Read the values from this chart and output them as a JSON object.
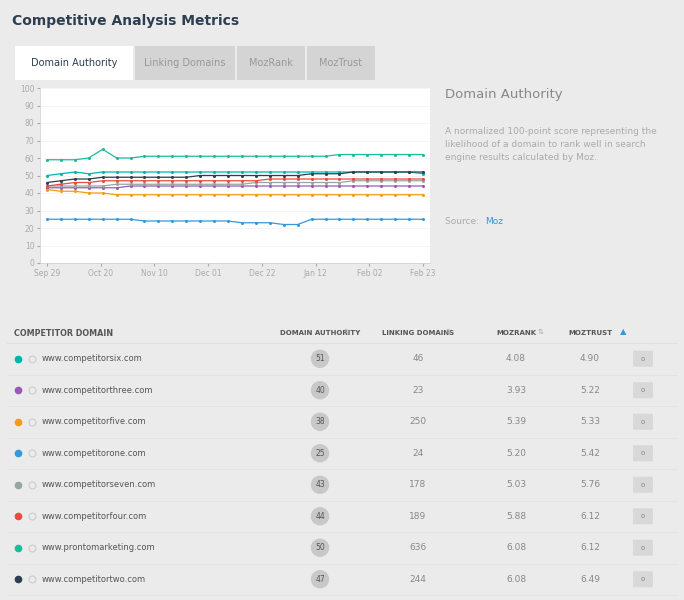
{
  "title": "Competitive Analysis Metrics",
  "tab_labels": [
    "Domain Authority",
    "Linking Domains",
    "MozRank",
    "MozTrust"
  ],
  "chart_title": "Domain Authority",
  "chart_desc": "A normalized 100-point score representing the\nlikelihood of a domain to rank well in search\nengine results calculated by Moz.",
  "x_labels": [
    "Sep 29",
    "Oct 20",
    "Nov 10",
    "Dec 01",
    "Dec 22",
    "Jan 12",
    "Feb 02",
    "Feb 23"
  ],
  "ylim": [
    0,
    100
  ],
  "yticks": [
    0,
    10,
    20,
    30,
    40,
    50,
    60,
    70,
    80,
    90,
    100
  ],
  "lines": [
    {
      "label": "www.competitorsix.com",
      "color": "#00b5ad",
      "values": [
        50,
        51,
        52,
        51,
        52,
        52,
        52,
        52,
        52,
        52,
        52,
        52,
        52,
        52,
        52,
        52,
        52,
        52,
        52,
        52,
        52,
        52,
        52,
        52,
        52,
        52,
        52,
        51
      ]
    },
    {
      "label": "www.competitorthree.com",
      "color": "#9b59b6",
      "values": [
        43,
        43,
        43,
        43,
        43,
        43,
        44,
        44,
        44,
        44,
        44,
        44,
        44,
        44,
        44,
        44,
        44,
        44,
        44,
        44,
        44,
        44,
        44,
        44,
        44,
        44,
        44,
        44
      ]
    },
    {
      "label": "www.competitorfive.com",
      "color": "#f39c12",
      "values": [
        42,
        41,
        41,
        40,
        40,
        39,
        39,
        39,
        39,
        39,
        39,
        39,
        39,
        39,
        39,
        39,
        39,
        39,
        39,
        39,
        39,
        39,
        39,
        39,
        39,
        39,
        39,
        39
      ]
    },
    {
      "label": "www.competitorone.com",
      "color": "#3498db",
      "values": [
        25,
        25,
        25,
        25,
        25,
        25,
        25,
        24,
        24,
        24,
        24,
        24,
        24,
        24,
        23,
        23,
        23,
        22,
        22,
        25,
        25,
        25,
        25,
        25,
        25,
        25,
        25,
        25
      ]
    },
    {
      "label": "www.competitorseven.com",
      "color": "#95a5a6",
      "values": [
        44,
        44,
        44,
        44,
        44,
        45,
        45,
        45,
        45,
        45,
        45,
        45,
        45,
        45,
        45,
        46,
        46,
        46,
        46,
        46,
        46,
        46,
        47,
        47,
        47,
        47,
        47,
        47
      ]
    },
    {
      "label": "www.competitorfour.com",
      "color": "#e74c3c",
      "values": [
        44,
        45,
        46,
        46,
        47,
        47,
        47,
        47,
        47,
        47,
        47,
        47,
        47,
        47,
        47,
        47,
        48,
        48,
        48,
        48,
        48,
        48,
        48,
        48,
        48,
        48,
        48,
        48
      ]
    },
    {
      "label": "www.prontomarketing.com",
      "color": "#1abc9c",
      "values": [
        59,
        59,
        59,
        60,
        65,
        60,
        60,
        61,
        61,
        61,
        61,
        61,
        61,
        61,
        61,
        61,
        61,
        61,
        61,
        61,
        61,
        62,
        62,
        62,
        62,
        62,
        62,
        62
      ]
    },
    {
      "label": "www.competitortwo.com",
      "color": "#2c3e50",
      "values": [
        46,
        47,
        48,
        48,
        49,
        49,
        49,
        49,
        49,
        49,
        49,
        50,
        50,
        50,
        50,
        50,
        50,
        50,
        50,
        51,
        51,
        51,
        52,
        52,
        52,
        52,
        52,
        52
      ]
    }
  ],
  "table_headers": [
    "COMPETITOR DOMAIN",
    "DOMAIN AUTHORITY",
    "LINKING DOMAINS",
    "MOZRANK",
    "MOZTRUST"
  ],
  "table_rows": [
    {
      "domain": "www.competitorsix.com",
      "color": "#00b5ad",
      "da": 51,
      "ld": 46,
      "mozrank": "4.08",
      "moztrust": "4.90"
    },
    {
      "domain": "www.competitorthree.com",
      "color": "#9b59b6",
      "da": 40,
      "ld": 23,
      "mozrank": "3.93",
      "moztrust": "5.22"
    },
    {
      "domain": "www.competitorfive.com",
      "color": "#f39c12",
      "da": 38,
      "ld": 250,
      "mozrank": "5.39",
      "moztrust": "5.33"
    },
    {
      "domain": "www.competitorone.com",
      "color": "#3498db",
      "da": 25,
      "ld": 24,
      "mozrank": "5.20",
      "moztrust": "5.42"
    },
    {
      "domain": "www.competitorseven.com",
      "color": "#95a5a6",
      "da": 43,
      "ld": 178,
      "mozrank": "5.03",
      "moztrust": "5.76"
    },
    {
      "domain": "www.competitorfour.com",
      "color": "#e74c3c",
      "da": 44,
      "ld": 189,
      "mozrank": "5.88",
      "moztrust": "6.12"
    },
    {
      "domain": "www.prontomarketing.com",
      "color": "#1abc9c",
      "da": 50,
      "ld": 636,
      "mozrank": "6.08",
      "moztrust": "6.12"
    },
    {
      "domain": "www.competitortwo.com",
      "color": "#2c3e50",
      "da": 47,
      "ld": 244,
      "mozrank": "6.08",
      "moztrust": "6.49"
    }
  ],
  "bg_outer": "#ebebeb",
  "bg_white": "#ffffff",
  "bg_table": "#ffffff",
  "tab_bg_color": "#d4d4d4",
  "text_dark": "#2c3e50",
  "text_mid": "#666666",
  "text_light": "#999999",
  "badge_color": "#c8c8c8",
  "gear_color": "#d8d8d8",
  "separator_color": "#e0e0e0",
  "grid_color": "#eeeeee"
}
